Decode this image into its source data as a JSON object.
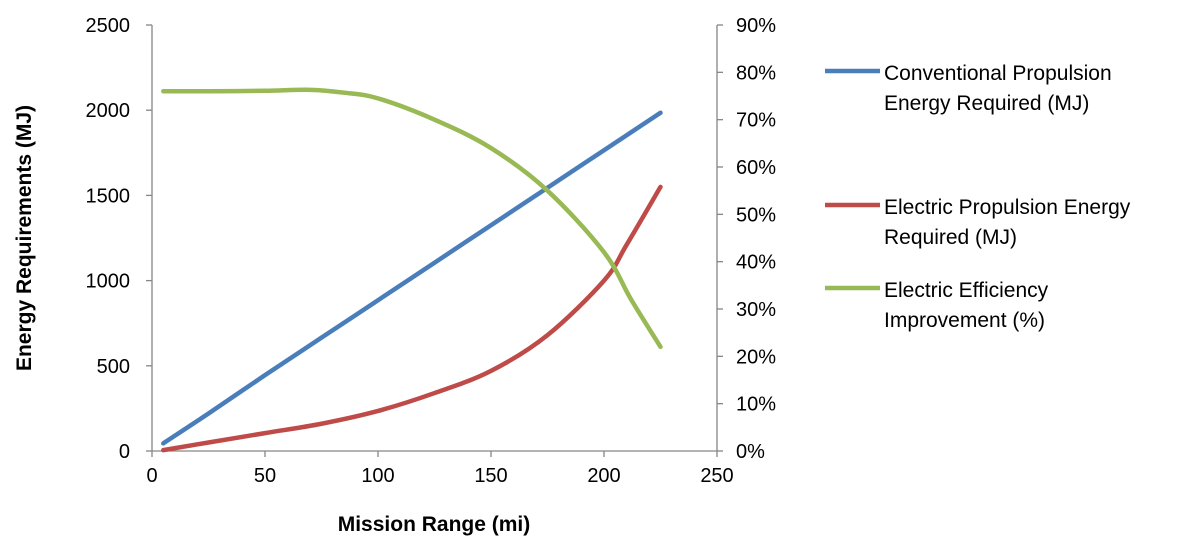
{
  "chart_data": {
    "type": "line",
    "title": "",
    "xlabel": "Mission Range (mi)",
    "ylabel": "Energy Requirements (MJ)",
    "y2label": "",
    "xlim": [
      0,
      250
    ],
    "ylim": [
      0,
      2500
    ],
    "y2lim": [
      0,
      0.9
    ],
    "x_ticks": [
      "0",
      "50",
      "100",
      "150",
      "200",
      "250"
    ],
    "y_ticks": [
      "0",
      "500",
      "1000",
      "1500",
      "2000",
      "2500"
    ],
    "y2_ticks": [
      "0%",
      "10%",
      "20%",
      "30%",
      "40%",
      "50%",
      "60%",
      "70%",
      "80%",
      "90%"
    ],
    "grid": false,
    "legend_position": "right",
    "series": [
      {
        "name": "Conventional Propulsion Energy Required (MJ)",
        "legend_lines": [
          "Conventional Propulsion",
          "Energy Required (MJ)"
        ],
        "axis": "left",
        "color": "#4A7EBB",
        "x": [
          5,
          25,
          50,
          75,
          100,
          125,
          150,
          175,
          200,
          225
        ],
        "values": [
          45,
          220,
          445,
          665,
          885,
          1105,
          1325,
          1545,
          1765,
          1985
        ]
      },
      {
        "name": "Electric Propulsion Energy Required (MJ)",
        "legend_lines": [
          "Electric Propulsion Energy",
          "Required (MJ)"
        ],
        "axis": "left",
        "color": "#BE4B48",
        "x": [
          5,
          25,
          50,
          75,
          100,
          125,
          150,
          175,
          200,
          210,
          225
        ],
        "values": [
          5,
          50,
          105,
          160,
          235,
          340,
          470,
          680,
          1000,
          1210,
          1550
        ]
      },
      {
        "name": "Electric Efficiency Improvement (%)",
        "legend_lines": [
          "Electric Efficiency",
          "Improvement (%)"
        ],
        "axis": "right",
        "color": "#98B954",
        "x": [
          5,
          25,
          50,
          70,
          85,
          100,
          125,
          150,
          175,
          200,
          212,
          225
        ],
        "values": [
          0.76,
          0.76,
          0.761,
          0.763,
          0.757,
          0.745,
          0.7,
          0.64,
          0.55,
          0.42,
          0.32,
          0.22
        ]
      }
    ]
  }
}
